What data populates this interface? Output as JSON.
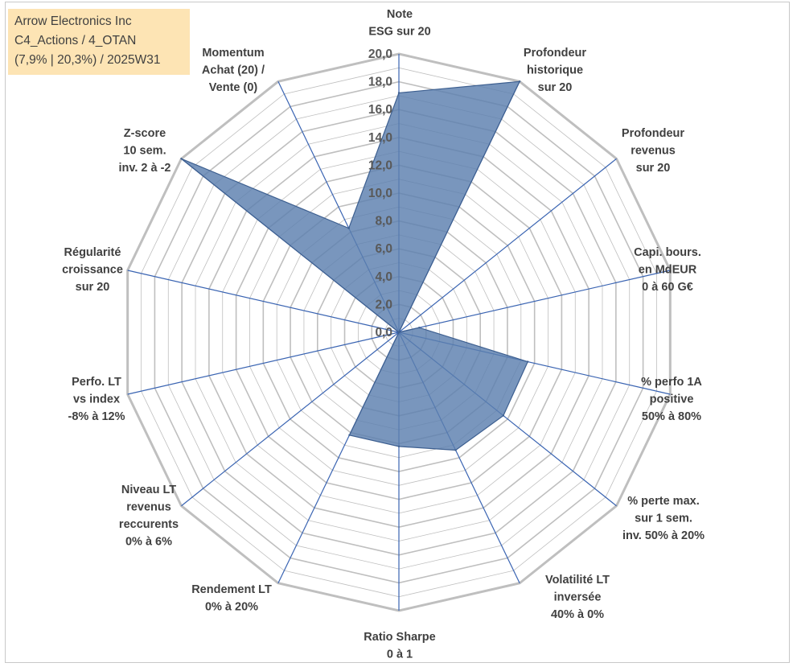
{
  "title_box": {
    "line1": "Arrow Electronics Inc",
    "line2": "C4_Actions / 4_OTAN",
    "line3": "(7,9% | 20,3%) / 2025W31"
  },
  "chart_data": {
    "type": "radar",
    "rmin": 0,
    "rmax": 20,
    "tick_labels": [
      "0,0",
      "2,0",
      "4,0",
      "6,0",
      "8,0",
      "10,0",
      "12,0",
      "14,0",
      "16,0",
      "18,0",
      "20,0"
    ],
    "grid": true,
    "fill_color": "#5b7fae",
    "axis_color": "#3a64b2",
    "grid_color": "#bfbfbf",
    "axes": [
      {
        "label": [
          "Note",
          "ESG sur 20"
        ],
        "value": 17.2
      },
      {
        "label": [
          "Profondeur",
          "historique",
          "sur 20"
        ],
        "value": 20.0
      },
      {
        "label": [
          "Profondeur",
          "revenus",
          "sur 20"
        ],
        "value": 0.0
      },
      {
        "label": [
          "Capi. bours.",
          "en MdEUR",
          "0 à 60 G€"
        ],
        "value": 1.5
      },
      {
        "label": [
          "% perfo 1A",
          "positive",
          "50% à 80%"
        ],
        "value": 9.5
      },
      {
        "label": [
          "% perte max.",
          "sur 1 sem.",
          "inv. 50% à 20%"
        ],
        "value": 9.6
      },
      {
        "label": [
          "Volatilité LT",
          "inversée",
          "40% à 0%"
        ],
        "value": 9.4
      },
      {
        "label": [
          "Ratio Sharpe",
          "0 à 1"
        ],
        "value": 8.2
      },
      {
        "label": [
          "Rendement LT",
          "0% à 20%"
        ],
        "value": 8.2
      },
      {
        "label": [
          "Niveau LT",
          "revenus",
          "reccurents",
          "0% à 6%"
        ],
        "value": 0.0
      },
      {
        "label": [
          "Perfo. LT",
          "vs index",
          "-8% à 12%"
        ],
        "value": 0.0
      },
      {
        "label": [
          "Régularité",
          "croissance",
          "sur 20"
        ],
        "value": 0.0
      },
      {
        "label": [
          "Z-score",
          "10 sem.",
          "inv. 2 à -2"
        ],
        "value": 20.0
      },
      {
        "label": [
          "Momentum",
          "Achat (20) /",
          "Vente (0)"
        ],
        "value": 8.3
      }
    ]
  }
}
